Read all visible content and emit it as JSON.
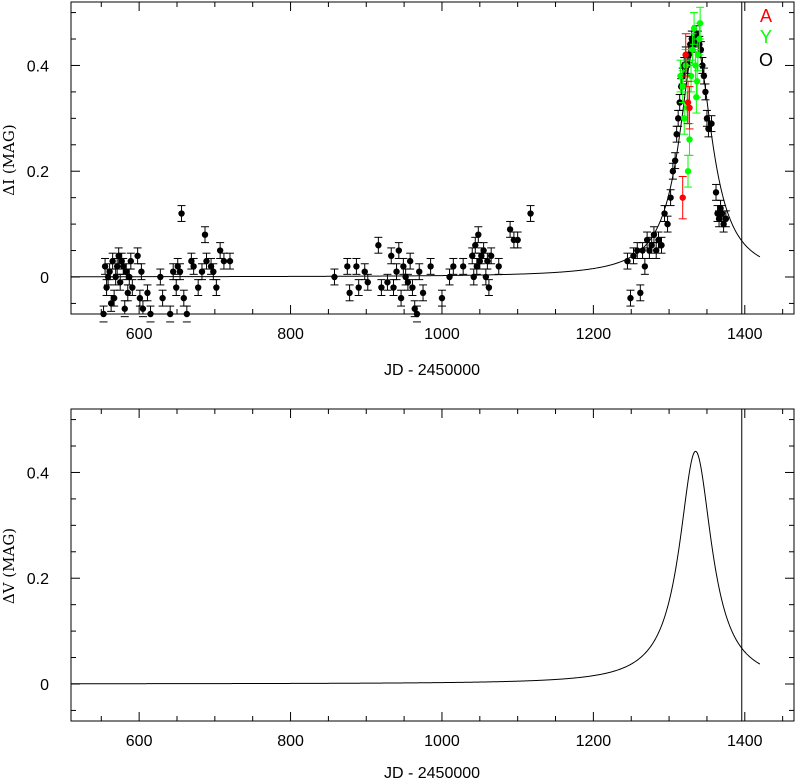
{
  "chart_data": [
    {
      "type": "scatter",
      "xlabel": "JD - 2450000",
      "ylabel": "ΔI (MAG)",
      "xlim": [
        510,
        1465
      ],
      "ylim": [
        -0.07,
        0.52
      ],
      "xticks": [
        600,
        800,
        1000,
        1200,
        1400
      ],
      "yticks": [
        0,
        0.2,
        0.4
      ],
      "vline_x": 1396,
      "legend": {
        "placement": "top-right",
        "entries": [
          {
            "label": "A",
            "color": "#ff0000"
          },
          {
            "label": "Y",
            "color": "#00ff00"
          },
          {
            "label": "O",
            "color": "#000000"
          }
        ]
      },
      "model_curve": {
        "baseline": 0.0,
        "peak": 0.445,
        "t0": 1335,
        "tE": 26,
        "x_start": 510,
        "x_end": 1420
      },
      "series": [
        {
          "name": "O",
          "color": "#000000",
          "err": 0.015,
          "points": [
            [
              553,
              -0.07
            ],
            [
              555,
              0.02
            ],
            [
              557,
              -0.02
            ],
            [
              559,
              0.0
            ],
            [
              561,
              0.01
            ],
            [
              563,
              -0.05
            ],
            [
              565,
              0.03
            ],
            [
              567,
              -0.04
            ],
            [
              569,
              0.0
            ],
            [
              571,
              0.02
            ],
            [
              573,
              0.04
            ],
            [
              575,
              -0.01
            ],
            [
              577,
              0.03
            ],
            [
              579,
              0.02
            ],
            [
              581,
              -0.06
            ],
            [
              583,
              0.01
            ],
            [
              585,
              -0.03
            ],
            [
              587,
              0.0
            ],
            [
              589,
              0.03
            ],
            [
              591,
              -0.02
            ],
            [
              598,
              0.04
            ],
            [
              601,
              -0.04
            ],
            [
              603,
              0.01
            ],
            [
              605,
              -0.06
            ],
            [
              611,
              -0.03
            ],
            [
              615,
              -0.07
            ],
            [
              628,
              0.0
            ],
            [
              631,
              -0.04
            ],
            [
              641,
              -0.07
            ],
            [
              645,
              0.01
            ],
            [
              649,
              -0.02
            ],
            [
              651,
              0.02
            ],
            [
              654,
              0.01
            ],
            [
              656,
              0.12
            ],
            [
              659,
              -0.04
            ],
            [
              663,
              -0.07
            ],
            [
              669,
              0.03
            ],
            [
              672,
              0.02
            ],
            [
              678,
              -0.02
            ],
            [
              683,
              0.01
            ],
            [
              687,
              0.08
            ],
            [
              689,
              0.03
            ],
            [
              695,
              0.02
            ],
            [
              698,
              0.01
            ],
            [
              702,
              -0.02
            ],
            [
              707,
              0.05
            ],
            [
              712,
              0.03
            ],
            [
              720,
              0.03
            ],
            [
              858,
              0.0
            ],
            [
              875,
              0.02
            ],
            [
              878,
              -0.03
            ],
            [
              887,
              0.02
            ],
            [
              890,
              -0.02
            ],
            [
              898,
              0.01
            ],
            [
              902,
              -0.01
            ],
            [
              916,
              0.06
            ],
            [
              920,
              -0.02
            ],
            [
              928,
              -0.01
            ],
            [
              933,
              0.04
            ],
            [
              936,
              -0.02
            ],
            [
              940,
              0.01
            ],
            [
              943,
              0.05
            ],
            [
              946,
              -0.04
            ],
            [
              949,
              0.02
            ],
            [
              952,
              0.0
            ],
            [
              955,
              -0.01
            ],
            [
              958,
              0.03
            ],
            [
              961,
              -0.02
            ],
            [
              964,
              -0.06
            ],
            [
              967,
              -0.07
            ],
            [
              970,
              0.01
            ],
            [
              975,
              -0.03
            ],
            [
              985,
              0.02
            ],
            [
              1000,
              -0.04
            ],
            [
              1010,
              0.0
            ],
            [
              1015,
              0.02
            ],
            [
              1028,
              0.02
            ],
            [
              1040,
              0.04
            ],
            [
              1042,
              0.0
            ],
            [
              1044,
              0.06
            ],
            [
              1046,
              0.02
            ],
            [
              1048,
              0.08
            ],
            [
              1050,
              0.03
            ],
            [
              1052,
              0.04
            ],
            [
              1055,
              0.05
            ],
            [
              1058,
              0.0
            ],
            [
              1060,
              0.03
            ],
            [
              1062,
              -0.02
            ],
            [
              1065,
              0.04
            ],
            [
              1075,
              0.02
            ],
            [
              1090,
              0.09
            ],
            [
              1095,
              0.07
            ],
            [
              1100,
              0.07
            ],
            [
              1117,
              0.12
            ],
            [
              1245,
              0.03
            ],
            [
              1249,
              -0.04
            ],
            [
              1253,
              0.04
            ],
            [
              1258,
              0.05
            ],
            [
              1262,
              -0.03
            ],
            [
              1265,
              0.05
            ],
            [
              1268,
              0.02
            ],
            [
              1271,
              0.07
            ],
            [
              1274,
              0.05
            ],
            [
              1277,
              0.06
            ],
            [
              1280,
              0.08
            ],
            [
              1283,
              0.05
            ],
            [
              1286,
              0.07
            ],
            [
              1290,
              0.06
            ],
            [
              1294,
              0.12
            ],
            [
              1298,
              0.1
            ],
            [
              1302,
              0.15
            ],
            [
              1305,
              0.2
            ],
            [
              1308,
              0.22
            ],
            [
              1310,
              0.27
            ],
            [
              1312,
              0.3
            ],
            [
              1314,
              0.33
            ],
            [
              1316,
              0.36
            ],
            [
              1318,
              0.38
            ],
            [
              1320,
              0.4
            ],
            [
              1322,
              0.42
            ],
            [
              1324,
              0.4
            ],
            [
              1326,
              0.42
            ],
            [
              1328,
              0.44
            ],
            [
              1330,
              0.45
            ],
            [
              1332,
              0.44
            ],
            [
              1334,
              0.45
            ],
            [
              1336,
              0.46
            ],
            [
              1338,
              0.45
            ],
            [
              1340,
              0.44
            ],
            [
              1342,
              0.43
            ],
            [
              1344,
              0.4
            ],
            [
              1346,
              0.38
            ],
            [
              1348,
              0.35
            ],
            [
              1350,
              0.3
            ],
            [
              1352,
              0.28
            ],
            [
              1356,
              0.29
            ],
            [
              1362,
              0.16
            ],
            [
              1364,
              0.12
            ],
            [
              1366,
              0.11
            ],
            [
              1368,
              0.13
            ],
            [
              1370,
              0.12
            ],
            [
              1372,
              0.1
            ],
            [
              1375,
              0.11
            ]
          ]
        },
        {
          "name": "Y",
          "color": "#00ff00",
          "err": 0.03,
          "points": [
            [
              1315,
              0.38
            ],
            [
              1318,
              0.36
            ],
            [
              1320,
              0.3
            ],
            [
              1322,
              0.4
            ],
            [
              1324,
              0.32
            ],
            [
              1325,
              0.2
            ],
            [
              1327,
              0.26
            ],
            [
              1329,
              0.38
            ],
            [
              1331,
              0.43
            ],
            [
              1333,
              0.47
            ],
            [
              1335,
              0.4
            ],
            [
              1336,
              0.34
            ],
            [
              1337,
              0.37
            ],
            [
              1338,
              0.42
            ],
            [
              1340,
              0.45
            ],
            [
              1341,
              0.48
            ]
          ]
        },
        {
          "name": "A",
          "color": "#ff0000",
          "err": 0.04,
          "points": [
            [
              1318,
              0.15
            ],
            [
              1322,
              0.42
            ],
            [
              1325,
              0.33
            ],
            [
              1327,
              0.32
            ]
          ]
        }
      ]
    },
    {
      "type": "line",
      "xlabel": "JD - 2450000",
      "ylabel": "ΔV (MAG)",
      "xlim": [
        510,
        1465
      ],
      "ylim": [
        -0.07,
        0.52
      ],
      "xticks": [
        600,
        800,
        1000,
        1200,
        1400
      ],
      "yticks": [
        0,
        0.2,
        0.4
      ],
      "vline_x": 1396,
      "model_curve": {
        "baseline": 0.0,
        "peak": 0.44,
        "t0": 1335,
        "tE": 26,
        "x_start": 510,
        "x_end": 1420
      }
    }
  ]
}
